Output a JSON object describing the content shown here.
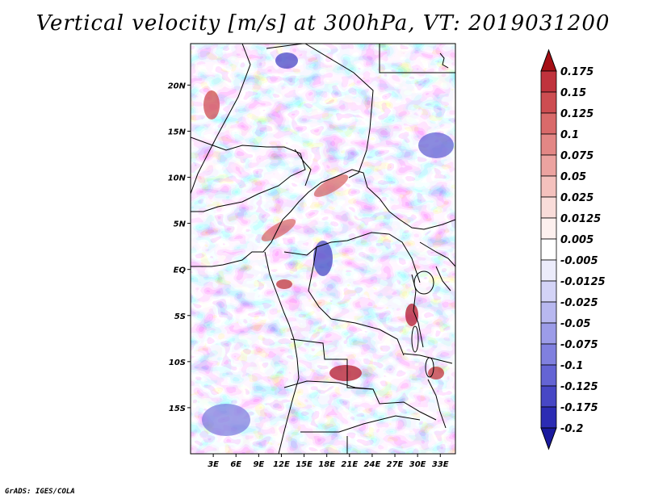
{
  "title": "Vertical velocity [m/s] at 300hPa, VT: 2019031200",
  "footer": "GrADS: IGES/COLA",
  "map": {
    "lon_range": [
      0,
      35
    ],
    "lat_range": [
      -20,
      24.5
    ],
    "lon_ticks": [
      {
        "value": 3,
        "label": "3E"
      },
      {
        "value": 6,
        "label": "6E"
      },
      {
        "value": 9,
        "label": "9E"
      },
      {
        "value": 12,
        "label": "12E"
      },
      {
        "value": 15,
        "label": "15E"
      },
      {
        "value": 18,
        "label": "18E"
      },
      {
        "value": 21,
        "label": "21E"
      },
      {
        "value": 24,
        "label": "24E"
      },
      {
        "value": 27,
        "label": "27E"
      },
      {
        "value": 30,
        "label": "30E"
      },
      {
        "value": 33,
        "label": "33E"
      }
    ],
    "lat_ticks": [
      {
        "value": 20,
        "label": "20N"
      },
      {
        "value": 15,
        "label": "15N"
      },
      {
        "value": 10,
        "label": "10N"
      },
      {
        "value": 5,
        "label": "5N"
      },
      {
        "value": 0,
        "label": "EQ"
      },
      {
        "value": -5,
        "label": "5S"
      },
      {
        "value": -10,
        "label": "10S"
      },
      {
        "value": -15,
        "label": "15S"
      }
    ]
  },
  "colorbar": {
    "levels": [
      {
        "label": "0.175",
        "color": "#b2182b"
      },
      {
        "label": "0.15",
        "color": "#c0333d"
      },
      {
        "label": "0.125",
        "color": "#cd4d51"
      },
      {
        "label": "0.1",
        "color": "#d96a6a"
      },
      {
        "label": "0.075",
        "color": "#e38785"
      },
      {
        "label": "0.05",
        "color": "#eca3a0"
      },
      {
        "label": "0.025",
        "color": "#f4c1bd"
      },
      {
        "label": "0.0125",
        "color": "#f9dcd9"
      },
      {
        "label": "0.005",
        "color": "#fdf0ee"
      },
      {
        "label": "-0.005",
        "color": "#ffffff"
      },
      {
        "label": "-0.0125",
        "color": "#ececfb"
      },
      {
        "label": "-0.025",
        "color": "#d3d3f6"
      },
      {
        "label": "-0.05",
        "color": "#b8b8f0"
      },
      {
        "label": "-0.075",
        "color": "#9c9ce8"
      },
      {
        "label": "-0.1",
        "color": "#8080df"
      },
      {
        "label": "-0.125",
        "color": "#6464d4"
      },
      {
        "label": "-0.175",
        "color": "#4747c5"
      },
      {
        "label": "-0.2",
        "color": "#2c2cb3"
      }
    ],
    "top_color": "#a50f15",
    "bottom_color": "#1a1a9e"
  }
}
